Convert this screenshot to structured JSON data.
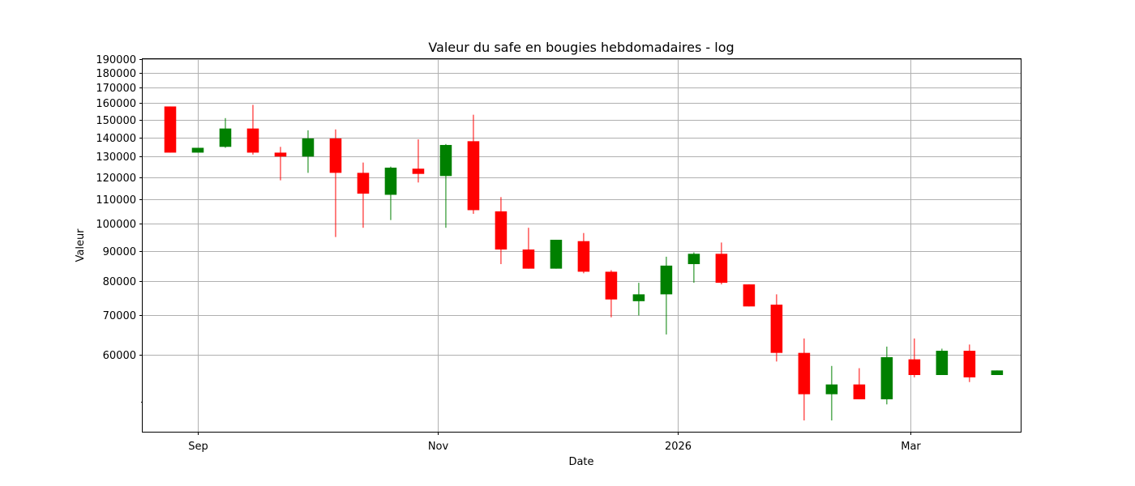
{
  "chart_data": {
    "type": "candlestick",
    "title": "Valeur du safe en bougies hebdomadaires - log",
    "xlabel": "Date",
    "ylabel": "Valeur",
    "yscale": "log",
    "ylim": [
      44500,
      190000
    ],
    "xlim": [
      "2025-08-18",
      "2026-03-29"
    ],
    "grid": true,
    "colors": {
      "up": "#008000",
      "down": "#ff0000"
    },
    "x_ticks": [
      {
        "date": "2025-09-01",
        "label": "Sep"
      },
      {
        "date": "2025-11-01",
        "label": "Nov"
      },
      {
        "date": "2026-01-01",
        "label": "2026"
      },
      {
        "date": "2026-03-01",
        "label": "Mar"
      }
    ],
    "y_ticks": [
      {
        "value": 60000,
        "label": "60000"
      },
      {
        "value": 70000,
        "label": "70000"
      },
      {
        "value": 80000,
        "label": "80000"
      },
      {
        "value": 90000,
        "label": "90000"
      },
      {
        "value": 100000,
        "label": "100000"
      },
      {
        "value": 110000,
        "label": "110000"
      },
      {
        "value": 120000,
        "label": "120000"
      },
      {
        "value": 130000,
        "label": "130000"
      },
      {
        "value": 140000,
        "label": "140000"
      },
      {
        "value": 150000,
        "label": "150000"
      },
      {
        "value": 160000,
        "label": "160000"
      },
      {
        "value": 170000,
        "label": "170000"
      },
      {
        "value": 180000,
        "label": "180000"
      },
      {
        "value": 190000,
        "label": "190000"
      }
    ],
    "y_minor_ticks": [
      50000
    ],
    "candles": [
      {
        "date": "2025-08-25",
        "open": 158000,
        "high": 158000,
        "low": 132000,
        "close": 132000
      },
      {
        "date": "2025-09-01",
        "open": 132000,
        "high": 134500,
        "low": 132000,
        "close": 134500
      },
      {
        "date": "2025-09-08",
        "open": 135000,
        "high": 151000,
        "low": 134500,
        "close": 145000
      },
      {
        "date": "2025-09-15",
        "open": 145000,
        "high": 159000,
        "low": 131000,
        "close": 132000
      },
      {
        "date": "2025-09-22",
        "open": 132000,
        "high": 135000,
        "low": 118500,
        "close": 130000
      },
      {
        "date": "2025-09-29",
        "open": 130000,
        "high": 144000,
        "low": 122000,
        "close": 139500
      },
      {
        "date": "2025-10-06",
        "open": 139500,
        "high": 144500,
        "low": 95000,
        "close": 122000
      },
      {
        "date": "2025-10-13",
        "open": 122000,
        "high": 127000,
        "low": 98500,
        "close": 112500
      },
      {
        "date": "2025-10-20",
        "open": 112000,
        "high": 125000,
        "low": 101500,
        "close": 124500
      },
      {
        "date": "2025-10-27",
        "open": 124000,
        "high": 139000,
        "low": 117500,
        "close": 121500
      },
      {
        "date": "2025-11-03",
        "open": 120500,
        "high": 136500,
        "low": 98500,
        "close": 136000
      },
      {
        "date": "2025-11-10",
        "open": 138000,
        "high": 153000,
        "low": 104000,
        "close": 105500
      },
      {
        "date": "2025-11-17",
        "open": 105000,
        "high": 111000,
        "low": 85500,
        "close": 90500
      },
      {
        "date": "2025-11-24",
        "open": 90500,
        "high": 98500,
        "low": 84000,
        "close": 84000
      },
      {
        "date": "2025-12-01",
        "open": 84000,
        "high": 94000,
        "low": 84000,
        "close": 94000
      },
      {
        "date": "2025-12-08",
        "open": 93500,
        "high": 96500,
        "low": 82500,
        "close": 83000
      },
      {
        "date": "2025-12-15",
        "open": 83000,
        "high": 83500,
        "low": 69500,
        "close": 74500
      },
      {
        "date": "2025-12-22",
        "open": 74000,
        "high": 79500,
        "low": 70000,
        "close": 76000
      },
      {
        "date": "2025-12-29",
        "open": 76000,
        "high": 88000,
        "low": 65000,
        "close": 85000
      },
      {
        "date": "2026-01-05",
        "open": 85500,
        "high": 89500,
        "low": 79500,
        "close": 89000
      },
      {
        "date": "2026-01-12",
        "open": 89000,
        "high": 93000,
        "low": 79000,
        "close": 79500
      },
      {
        "date": "2026-01-19",
        "open": 79000,
        "high": 79000,
        "low": 72500,
        "close": 72500
      },
      {
        "date": "2026-01-26",
        "open": 73000,
        "high": 76000,
        "low": 58500,
        "close": 60500
      },
      {
        "date": "2026-02-02",
        "open": 60500,
        "high": 64000,
        "low": 46500,
        "close": 51500
      },
      {
        "date": "2026-02-09",
        "open": 51500,
        "high": 57500,
        "low": 46500,
        "close": 53500
      },
      {
        "date": "2026-02-16",
        "open": 53500,
        "high": 57000,
        "low": 50500,
        "close": 50500
      },
      {
        "date": "2026-02-23",
        "open": 50500,
        "high": 62000,
        "low": 49500,
        "close": 59500
      },
      {
        "date": "2026-03-02",
        "open": 59000,
        "high": 64000,
        "low": 55000,
        "close": 55500
      },
      {
        "date": "2026-03-09",
        "open": 55500,
        "high": 61500,
        "low": 55500,
        "close": 61000
      },
      {
        "date": "2026-03-16",
        "open": 61000,
        "high": 62500,
        "low": 54000,
        "close": 55000
      },
      {
        "date": "2026-03-23",
        "open": 55500,
        "high": 56500,
        "low": 55500,
        "close": 56500
      }
    ]
  }
}
